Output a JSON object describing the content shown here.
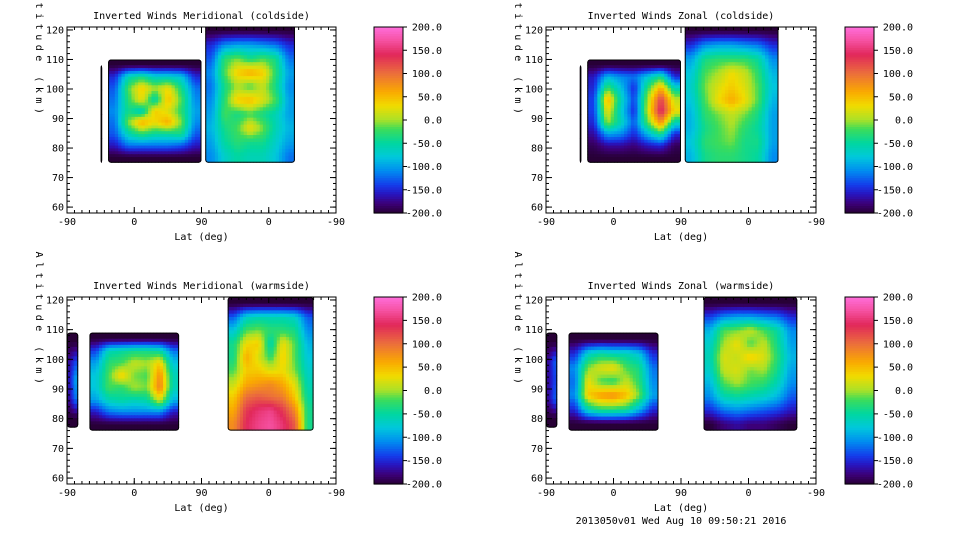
{
  "figure_footer": "2013050v01 Wed Aug 10 09:50:21 2016",
  "chart_data": [
    {
      "type": "heatmap",
      "title": "Inverted Winds Meridional (coldside)",
      "xlabel": "Lat (deg)",
      "ylabel": "Altitude (km)",
      "x_ticks": [
        "-90",
        "0",
        "90",
        "0",
        "-90"
      ],
      "y_ticks": [
        60,
        70,
        80,
        90,
        100,
        110,
        120
      ],
      "ylim": [
        58,
        121
      ],
      "colorbar": {
        "min": -200,
        "max": 200,
        "ticks": [
          "200.0",
          "150.0",
          "100.0",
          "50.0",
          "0.0",
          "-50.0",
          "-100.0",
          "-150.0",
          "-200.0"
        ]
      },
      "regions": [
        {
          "x_range": [
            -45,
            -43
          ],
          "alt_range": [
            75,
            108
          ],
          "values": [
            [
              -200
            ]
          ]
        },
        {
          "x_range": [
            -35,
            90
          ],
          "alt_range": [
            75,
            110
          ],
          "values": [
            [
              -200,
              -200,
              -200,
              -200,
              -200,
              -200,
              -200
            ],
            [
              -150,
              -60,
              -40,
              -70,
              -70,
              -80,
              -150
            ],
            [
              -130,
              -20,
              40,
              0,
              30,
              -40,
              -120
            ],
            [
              -120,
              -30,
              30,
              -60,
              50,
              -20,
              -110
            ],
            [
              -110,
              -40,
              -70,
              40,
              20,
              -30,
              -100
            ],
            [
              -120,
              -10,
              60,
              30,
              60,
              -10,
              -110
            ],
            [
              -130,
              -60,
              -30,
              -50,
              -50,
              -40,
              -130
            ],
            [
              -160,
              -120,
              -120,
              -120,
              -120,
              -130,
              -160
            ],
            [
              -200,
              -200,
              -200,
              -200,
              -200,
              -200,
              -200
            ]
          ]
        },
        {
          "x_range": [
            95,
            215
          ],
          "alt_range": [
            75,
            122
          ],
          "values": [
            [
              -200,
              -200,
              -200,
              -200,
              -200,
              -200,
              -200
            ],
            [
              -150,
              -110,
              -100,
              -100,
              -110,
              -120,
              -150
            ],
            [
              -130,
              -30,
              -10,
              -40,
              -20,
              -40,
              -120
            ],
            [
              -110,
              -20,
              40,
              60,
              40,
              -30,
              -100
            ],
            [
              -120,
              -40,
              0,
              -20,
              10,
              -40,
              -110
            ],
            [
              -110,
              -30,
              40,
              50,
              20,
              -20,
              -100
            ],
            [
              -100,
              -20,
              -40,
              -20,
              -40,
              -60,
              -100
            ],
            [
              -90,
              -40,
              -20,
              30,
              -10,
              -60,
              -90
            ],
            [
              -100,
              -50,
              -30,
              -40,
              -40,
              -70,
              -100
            ],
            [
              -110,
              -70,
              -50,
              -60,
              -60,
              -80,
              -120
            ]
          ]
        }
      ]
    },
    {
      "type": "heatmap",
      "title": "Inverted Winds Zonal (coldside)",
      "xlabel": "Lat (deg)",
      "ylabel": "Altitude (km)",
      "x_ticks": [
        "-90",
        "0",
        "90",
        "0",
        "-90"
      ],
      "y_ticks": [
        60,
        70,
        80,
        90,
        100,
        110,
        120
      ],
      "ylim": [
        58,
        121
      ],
      "colorbar": {
        "min": -200,
        "max": 200,
        "ticks": [
          "200.0",
          "150.0",
          "100.0",
          "50.0",
          "0.0",
          "-50.0",
          "-100.0",
          "-150.0",
          "-200.0"
        ]
      },
      "regions": [
        {
          "x_range": [
            -45,
            -43
          ],
          "alt_range": [
            75,
            108
          ],
          "values": [
            [
              -200
            ]
          ]
        },
        {
          "x_range": [
            -35,
            90
          ],
          "alt_range": [
            75,
            110
          ],
          "values": [
            [
              -200,
              -200,
              -200,
              -200,
              -200,
              -200,
              -200
            ],
            [
              -160,
              -90,
              -110,
              -120,
              -80,
              -40,
              -150
            ],
            [
              -150,
              -20,
              -80,
              -150,
              -30,
              60,
              -60
            ],
            [
              -140,
              60,
              -60,
              -140,
              0,
              130,
              10
            ],
            [
              -140,
              30,
              -70,
              -150,
              10,
              150,
              30
            ],
            [
              -150,
              0,
              -60,
              -130,
              -20,
              80,
              -60
            ],
            [
              -170,
              -100,
              -110,
              -150,
              -90,
              -40,
              -150
            ],
            [
              -190,
              -170,
              -170,
              -180,
              -160,
              -150,
              -190
            ],
            [
              -200,
              -200,
              -200,
              -200,
              -200,
              -200,
              -200
            ]
          ]
        },
        {
          "x_range": [
            95,
            220
          ],
          "alt_range": [
            75,
            122
          ],
          "values": [
            [
              -200,
              -200,
              -200,
              -200,
              -200,
              -200,
              -200
            ],
            [
              -150,
              -110,
              -100,
              -100,
              -110,
              -120,
              -150
            ],
            [
              -100,
              -40,
              -30,
              -30,
              -30,
              -50,
              -110
            ],
            [
              -80,
              -20,
              0,
              30,
              10,
              -30,
              -90
            ],
            [
              -70,
              -10,
              20,
              40,
              20,
              -20,
              -80
            ],
            [
              -80,
              -20,
              30,
              60,
              30,
              -20,
              -90
            ],
            [
              -90,
              -30,
              -10,
              10,
              -10,
              -40,
              -100
            ],
            [
              -90,
              -40,
              -20,
              0,
              -30,
              -50,
              -100
            ],
            [
              -80,
              -30,
              -20,
              -10,
              -40,
              -40,
              -100
            ],
            [
              -90,
              -40,
              -30,
              -30,
              -40,
              -50,
              -110
            ]
          ]
        }
      ]
    },
    {
      "type": "heatmap",
      "title": "Inverted Winds Meridional (warmside)",
      "xlabel": "Lat (deg)",
      "ylabel": "Altitude (km)",
      "x_ticks": [
        "-90",
        "0",
        "90",
        "0",
        "-90"
      ],
      "y_ticks": [
        60,
        70,
        80,
        90,
        100,
        110,
        120
      ],
      "ylim": [
        58,
        121
      ],
      "colorbar": {
        "min": -200,
        "max": 200,
        "ticks": [
          "200.0",
          "150.0",
          "100.0",
          "50.0",
          "0.0",
          "-50.0",
          "-100.0",
          "-150.0",
          "-200.0"
        ]
      },
      "regions": [
        {
          "x_range": [
            -90,
            -75
          ],
          "alt_range": [
            77,
            109
          ],
          "values": [
            [
              -200,
              -200
            ],
            [
              -170,
              -140
            ],
            [
              -160,
              -100
            ],
            [
              -170,
              -120
            ],
            [
              -200,
              -200
            ]
          ]
        },
        {
          "x_range": [
            -60,
            60
          ],
          "alt_range": [
            76,
            109
          ],
          "values": [
            [
              -200,
              -200,
              -200,
              -200,
              -200,
              -200,
              -200
            ],
            [
              -140,
              -60,
              -50,
              -40,
              -40,
              -50,
              -120
            ],
            [
              -100,
              -30,
              -20,
              10,
              0,
              40,
              -80
            ],
            [
              -80,
              -20,
              40,
              -10,
              -20,
              80,
              -60
            ],
            [
              -80,
              -20,
              -30,
              0,
              -10,
              90,
              -60
            ],
            [
              -100,
              -60,
              -50,
              -60,
              -50,
              20,
              -90
            ],
            [
              -160,
              -120,
              -110,
              -110,
              -110,
              -110,
              -160
            ],
            [
              -200,
              -200,
              -200,
              -200,
              -200,
              -200,
              -200
            ]
          ]
        },
        {
          "x_range": [
            125,
            240
          ],
          "alt_range": [
            76,
            121
          ],
          "values": [
            [
              -200,
              -200,
              -200,
              -200,
              -200,
              -200,
              -200
            ],
            [
              -130,
              -70,
              -60,
              -60,
              -60,
              -70,
              -130
            ],
            [
              -80,
              -20,
              -10,
              -30,
              -30,
              -40,
              -110
            ],
            [
              -40,
              30,
              40,
              -60,
              30,
              -20,
              -90
            ],
            [
              -40,
              60,
              20,
              -30,
              40,
              -20,
              -80
            ],
            [
              -20,
              40,
              40,
              20,
              30,
              -10,
              -70
            ],
            [
              10,
              60,
              70,
              80,
              60,
              20,
              -60
            ],
            [
              40,
              100,
              110,
              100,
              90,
              40,
              -50
            ],
            [
              60,
              130,
              150,
              160,
              130,
              80,
              -40
            ],
            [
              80,
              140,
              160,
              170,
              150,
              110,
              -40
            ]
          ]
        }
      ]
    },
    {
      "type": "heatmap",
      "title": "Inverted Winds Zonal (warmside)",
      "xlabel": "Lat (deg)",
      "ylabel": "Altitude (km)",
      "x_ticks": [
        "-90",
        "0",
        "90",
        "0",
        "-90"
      ],
      "y_ticks": [
        60,
        70,
        80,
        90,
        100,
        110,
        120
      ],
      "ylim": [
        58,
        121
      ],
      "colorbar": {
        "min": -200,
        "max": 200,
        "ticks": [
          "200.0",
          "150.0",
          "100.0",
          "50.0",
          "0.0",
          "-50.0",
          "-100.0",
          "-150.0",
          "-200.0"
        ]
      },
      "regions": [
        {
          "x_range": [
            -90,
            -75
          ],
          "alt_range": [
            77,
            109
          ],
          "values": [
            [
              -200,
              -200
            ],
            [
              -170,
              -130
            ],
            [
              -170,
              -140
            ],
            [
              -170,
              -130
            ],
            [
              -200,
              -200
            ]
          ]
        },
        {
          "x_range": [
            -60,
            60
          ],
          "alt_range": [
            76,
            109
          ],
          "values": [
            [
              -200,
              -200,
              -200,
              -200,
              -200,
              -200,
              -200
            ],
            [
              -150,
              -70,
              -50,
              -60,
              -60,
              -80,
              -150
            ],
            [
              -110,
              -10,
              20,
              30,
              -20,
              -40,
              -120
            ],
            [
              -120,
              30,
              -20,
              -30,
              10,
              -30,
              -110
            ],
            [
              -110,
              40,
              70,
              80,
              50,
              -10,
              -100
            ],
            [
              -150,
              -60,
              -30,
              -30,
              -40,
              -90,
              -150
            ],
            [
              -200,
              -200,
              -200,
              -200,
              -200,
              -200,
              -200
            ]
          ]
        },
        {
          "x_range": [
            120,
            245
          ],
          "alt_range": [
            76,
            121
          ],
          "values": [
            [
              -200,
              -200,
              -200,
              -200,
              -200,
              -200,
              -200
            ],
            [
              -140,
              -110,
              -100,
              -100,
              -110,
              -120,
              -150
            ],
            [
              -90,
              -20,
              -10,
              10,
              -20,
              -50,
              -110
            ],
            [
              -70,
              0,
              30,
              -20,
              10,
              -40,
              -100
            ],
            [
              -60,
              20,
              10,
              40,
              20,
              -30,
              -90
            ],
            [
              -70,
              10,
              20,
              -10,
              0,
              -40,
              -100
            ],
            [
              -90,
              -20,
              0,
              -20,
              -30,
              -60,
              -110
            ],
            [
              -110,
              -60,
              -50,
              -60,
              -70,
              -90,
              -130
            ],
            [
              -150,
              -120,
              -110,
              -120,
              -130,
              -140,
              -160
            ],
            [
              -200,
              -180,
              -170,
              -180,
              -180,
              -190,
              -200
            ]
          ]
        }
      ]
    }
  ]
}
